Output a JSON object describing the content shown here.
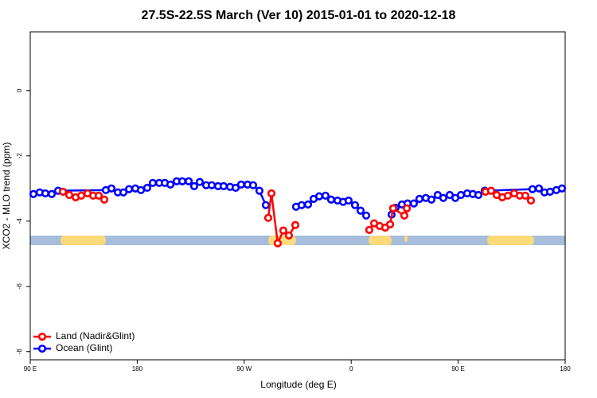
{
  "chart_data": {
    "type": "line",
    "title": "27.5S-22.5S March (Ver 10)   2015-01-01 to 2020-12-18",
    "x_label": "Longitude (deg E)",
    "y_label": "XCO2 - MLO trend (ppm)",
    "xlim": [
      90,
      540
    ],
    "ylim": [
      -8.25,
      1.8
    ],
    "xticks": [
      {
        "value": 90,
        "label": "90 E"
      },
      180,
      {
        "value": 270,
        "label": "90 W"
      },
      {
        "value": 360,
        "label": "0"
      },
      {
        "value": 450,
        "label": "90 E"
      },
      {
        "value": 540,
        "label": "180"
      }
    ],
    "yticks": [
      0,
      -2,
      -4,
      -6,
      -8
    ],
    "legend": "bottom-left",
    "series": [
      {
        "name": "Ocean (Glint)",
        "color": "#0000ff",
        "x": [
          92.7,
          98.0,
          102.7,
          108.1,
          113.4,
          153.6,
          158.3,
          163.7,
          168.4,
          173.1,
          178.4,
          183.1,
          188.4,
          193.1,
          198.5,
          203.2,
          207.9,
          213.2,
          217.9,
          223.3,
          227.9,
          232.6,
          238.0,
          242.7,
          248.0,
          252.7,
          258.1,
          262.8,
          267.4,
          272.8,
          277.5,
          282.8,
          288.2,
          null,
          313.6,
          318.3,
          323.7,
          328.4,
          333.1,
          338.4,
          343.1,
          348.5,
          353.2,
          357.8,
          363.2,
          367.9,
          372.6,
          null,
          394.0,
          397.3,
          402.7,
          407.4,
          412.7,
          417.4,
          422.8,
          427.5,
          432.8,
          437.5,
          442.9,
          447.6,
          452.3,
          457.6,
          462.3,
          467.0,
          472.3,
          512.5,
          517.9,
          522.6,
          527.3,
          532.6,
          537.3
        ],
        "values": [
          -3.17,
          -3.12,
          -3.15,
          -3.17,
          -3.07,
          -3.05,
          -3.0,
          -3.12,
          -3.12,
          -3.02,
          -3.0,
          -3.05,
          -2.98,
          -2.83,
          -2.83,
          -2.83,
          -2.88,
          -2.78,
          -2.78,
          -2.78,
          -2.93,
          -2.8,
          -2.9,
          -2.9,
          -2.93,
          -2.93,
          -2.95,
          -2.98,
          -2.88,
          -2.88,
          -2.9,
          -3.07,
          -3.51,
          null,
          -3.56,
          -3.51,
          -3.49,
          -3.32,
          -3.24,
          -3.22,
          -3.34,
          -3.37,
          -3.41,
          -3.37,
          -3.51,
          -3.68,
          -3.83,
          null,
          -3.8,
          -3.59,
          -3.49,
          -3.46,
          -3.46,
          -3.32,
          -3.29,
          -3.34,
          -3.2,
          -3.29,
          -3.2,
          -3.29,
          -3.2,
          -3.15,
          -3.17,
          -3.2,
          -3.07,
          -3.02,
          -3.0,
          -3.12,
          -3.1,
          -3.05,
          -3.0
        ]
      },
      {
        "name": "Land (Nadir&Glint)",
        "color": "#ff0000",
        "x": [
          117.5,
          122.8,
          128.2,
          132.9,
          138.2,
          142.9,
          147.6,
          152.3,
          null,
          290.2,
          292.9,
          298.2,
          302.9,
          307.6,
          313.0,
          null,
          375.2,
          379.3,
          384.0,
          388.6,
          392.7,
          395.3,
          404.7,
          406.8,
          null,
          473.0,
          477.7,
          482.4,
          487.1,
          491.8,
          497.1,
          501.8,
          506.5,
          511.2
        ],
        "values": [
          -3.1,
          -3.2,
          -3.27,
          -3.22,
          -3.15,
          -3.22,
          -3.22,
          -3.34,
          null,
          -3.9,
          -3.15,
          -4.68,
          -4.29,
          -4.44,
          -4.12,
          null,
          -4.27,
          -4.07,
          -4.15,
          -4.2,
          -4.1,
          -3.61,
          -3.83,
          -3.61,
          null,
          -3.1,
          -3.07,
          -3.2,
          -3.27,
          -3.22,
          -3.15,
          -3.22,
          -3.22,
          -3.37
        ]
      }
    ]
  }
}
